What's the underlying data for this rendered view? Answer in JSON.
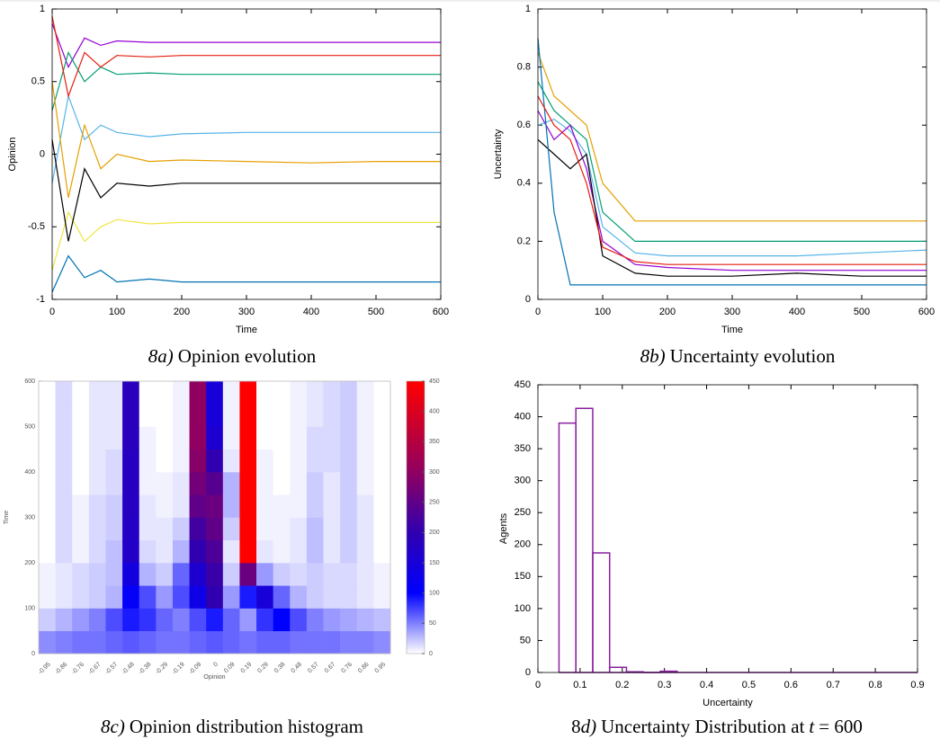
{
  "chart_data": [
    {
      "type": "line",
      "ylabel": "Opinion",
      "xlabel": "Time",
      "caption": [
        {
          "text": "8a)",
          "italic": true
        },
        {
          "text": "Opinion evolution",
          "italic": false
        }
      ],
      "xlim": [
        0,
        600
      ],
      "xticks": [
        0,
        100,
        200,
        300,
        400,
        500,
        600
      ],
      "ylim": [
        -1,
        1
      ],
      "yticks": [
        -1,
        -0.5,
        0,
        0.5,
        1
      ],
      "x": [
        0,
        25,
        50,
        75,
        100,
        150,
        200,
        300,
        400,
        500,
        600
      ],
      "series": [
        {
          "color": "#9400d3",
          "values": [
            0.9,
            0.6,
            0.8,
            0.75,
            0.78,
            0.77,
            0.77,
            0.77,
            0.77,
            0.77,
            0.77
          ]
        },
        {
          "color": "#009e73",
          "values": [
            0.3,
            0.7,
            0.5,
            0.6,
            0.55,
            0.56,
            0.55,
            0.55,
            0.55,
            0.55,
            0.55
          ]
        },
        {
          "color": "#56b4e9",
          "values": [
            -0.2,
            0.4,
            0.1,
            0.2,
            0.15,
            0.12,
            0.14,
            0.15,
            0.15,
            0.15,
            0.15
          ]
        },
        {
          "color": "#e69f00",
          "values": [
            0.5,
            -0.3,
            0.2,
            -0.1,
            0.0,
            -0.05,
            -0.04,
            -0.05,
            -0.06,
            -0.05,
            -0.05
          ]
        },
        {
          "color": "#f0e442",
          "values": [
            -0.8,
            -0.4,
            -0.6,
            -0.5,
            -0.45,
            -0.48,
            -0.47,
            -0.47,
            -0.47,
            -0.47,
            -0.47
          ]
        },
        {
          "color": "#000000",
          "values": [
            0.1,
            -0.6,
            -0.1,
            -0.3,
            -0.2,
            -0.22,
            -0.2,
            -0.2,
            -0.2,
            -0.2,
            -0.2
          ]
        },
        {
          "color": "#0072b2",
          "values": [
            -0.95,
            -0.7,
            -0.85,
            -0.8,
            -0.88,
            -0.86,
            -0.88,
            -0.88,
            -0.88,
            -0.88,
            -0.88
          ]
        },
        {
          "color": "#e51e10",
          "values": [
            0.95,
            0.4,
            0.7,
            0.6,
            0.68,
            0.67,
            0.68,
            0.68,
            0.68,
            0.68,
            0.68
          ]
        }
      ]
    },
    {
      "type": "line",
      "ylabel": "Uncertainty",
      "xlabel": "Time",
      "caption": [
        {
          "text": "8b)",
          "italic": true
        },
        {
          "text": "Uncertainty evolution",
          "italic": false
        }
      ],
      "xlim": [
        0,
        600
      ],
      "xticks": [
        0,
        100,
        200,
        300,
        400,
        500,
        600
      ],
      "ylim": [
        0,
        1
      ],
      "yticks": [
        0,
        0.2,
        0.4,
        0.6,
        0.8,
        1
      ],
      "x": [
        0,
        25,
        50,
        75,
        100,
        150,
        200,
        300,
        400,
        500,
        600
      ],
      "series": [
        {
          "color": "#e69f00",
          "values": [
            0.85,
            0.7,
            0.65,
            0.6,
            0.4,
            0.27,
            0.27,
            0.27,
            0.27,
            0.27,
            0.27
          ]
        },
        {
          "color": "#009e73",
          "values": [
            0.75,
            0.65,
            0.6,
            0.55,
            0.3,
            0.2,
            0.2,
            0.2,
            0.2,
            0.2,
            0.2
          ]
        },
        {
          "color": "#56b4e9",
          "values": [
            0.6,
            0.62,
            0.58,
            0.5,
            0.25,
            0.16,
            0.15,
            0.15,
            0.15,
            0.16,
            0.17
          ]
        },
        {
          "color": "#9400d3",
          "values": [
            0.65,
            0.55,
            0.6,
            0.45,
            0.2,
            0.12,
            0.11,
            0.1,
            0.1,
            0.1,
            0.1
          ]
        },
        {
          "color": "#000000",
          "values": [
            0.55,
            0.5,
            0.45,
            0.5,
            0.15,
            0.09,
            0.08,
            0.08,
            0.09,
            0.08,
            0.08
          ]
        },
        {
          "color": "#0072b2",
          "values": [
            0.9,
            0.3,
            0.05,
            0.05,
            0.05,
            0.05,
            0.05,
            0.05,
            0.05,
            0.05,
            0.05
          ]
        },
        {
          "color": "#e51e10",
          "values": [
            0.7,
            0.6,
            0.55,
            0.4,
            0.18,
            0.13,
            0.12,
            0.12,
            0.12,
            0.12,
            0.12
          ]
        }
      ]
    },
    {
      "type": "heatmap",
      "ylabel": "Time",
      "xlabel": "Opinion",
      "caption": [
        {
          "text": "8c)",
          "italic": true
        },
        {
          "text": "Opinion distribution histogram",
          "italic": false
        }
      ],
      "categories": [
        "-0.95",
        "-0.86",
        "-0.76",
        "-0.67",
        "-0.57",
        "-0.48",
        "-0.38",
        "-0.29",
        "-0.19",
        "-0.09",
        "0",
        "0.09",
        "0.19",
        "0.29",
        "0.38",
        "0.48",
        "0.57",
        "0.67",
        "0.76",
        "0.86",
        "0.95"
      ],
      "ylim": [
        0,
        600
      ],
      "yticks": [
        0,
        100,
        200,
        300,
        400,
        500,
        600
      ],
      "y_bins": [
        0,
        50,
        100,
        150,
        200,
        250,
        300,
        350,
        400,
        450,
        500,
        550,
        600
      ],
      "clim": [
        0,
        450
      ],
      "cticks": [
        0,
        50,
        100,
        150,
        200,
        250,
        300,
        350,
        400,
        450
      ],
      "colormap": [
        {
          "value": 0,
          "color": "#ffffff"
        },
        {
          "value": 100,
          "color": "#0000ff"
        },
        {
          "value": 200,
          "color": "#3000b0"
        },
        {
          "value": 300,
          "color": "#900060"
        },
        {
          "value": 450,
          "color": "#ff0000"
        }
      ],
      "values": [
        [
          45,
          50,
          55,
          55,
          60,
          65,
          60,
          55,
          55,
          60,
          65,
          60,
          55,
          60,
          60,
          55,
          55,
          55,
          50,
          50,
          45
        ],
        [
          20,
          30,
          40,
          50,
          70,
          90,
          80,
          60,
          50,
          70,
          90,
          60,
          40,
          80,
          100,
          70,
          50,
          40,
          35,
          30,
          25
        ],
        [
          5,
          10,
          15,
          20,
          30,
          110,
          70,
          40,
          70,
          130,
          200,
          40,
          90,
          150,
          60,
          30,
          20,
          15,
          15,
          10,
          5
        ],
        [
          5,
          10,
          15,
          20,
          25,
          140,
          30,
          20,
          60,
          160,
          210,
          20,
          260,
          40,
          20,
          15,
          20,
          15,
          15,
          10,
          5
        ],
        [
          0,
          15,
          5,
          15,
          25,
          170,
          15,
          10,
          30,
          200,
          230,
          10,
          450,
          10,
          5,
          10,
          25,
          10,
          20,
          10,
          0
        ],
        [
          0,
          15,
          5,
          15,
          20,
          175,
          10,
          10,
          20,
          220,
          250,
          20,
          450,
          5,
          5,
          10,
          25,
          10,
          20,
          10,
          0
        ],
        [
          0,
          15,
          5,
          15,
          20,
          180,
          10,
          5,
          10,
          250,
          260,
          30,
          450,
          5,
          5,
          5,
          20,
          10,
          20,
          10,
          0
        ],
        [
          0,
          15,
          0,
          10,
          15,
          180,
          5,
          5,
          10,
          270,
          240,
          30,
          450,
          5,
          0,
          5,
          20,
          10,
          20,
          5,
          0
        ],
        [
          0,
          15,
          0,
          10,
          15,
          180,
          5,
          0,
          5,
          290,
          200,
          10,
          450,
          5,
          0,
          5,
          15,
          15,
          20,
          5,
          0
        ],
        [
          0,
          15,
          0,
          10,
          10,
          185,
          5,
          0,
          5,
          300,
          160,
          5,
          450,
          0,
          0,
          5,
          15,
          15,
          20,
          5,
          0
        ],
        [
          0,
          15,
          0,
          10,
          10,
          185,
          0,
          0,
          5,
          300,
          150,
          5,
          450,
          0,
          0,
          5,
          10,
          15,
          20,
          5,
          0
        ],
        [
          0,
          15,
          0,
          10,
          10,
          185,
          0,
          0,
          5,
          300,
          150,
          5,
          450,
          0,
          0,
          5,
          10,
          15,
          20,
          5,
          0
        ]
      ]
    },
    {
      "type": "histogram",
      "ylabel": "Agents",
      "xlabel": "Uncertainty",
      "caption": [
        {
          "text": "8",
          "italic": false
        },
        {
          "text": "d)",
          "italic": true
        },
        {
          "text": "Uncertainty Distribution at",
          "italic": false
        },
        {
          "text": "t",
          "italic": true
        },
        {
          "text": "= 600",
          "italic": false
        }
      ],
      "xlim": [
        0,
        0.9
      ],
      "xticks": [
        0,
        0.1,
        0.2,
        0.3,
        0.4,
        0.5,
        0.6,
        0.7,
        0.8,
        0.9
      ],
      "ylim": [
        0,
        450
      ],
      "yticks": [
        0,
        50,
        100,
        150,
        200,
        250,
        300,
        350,
        400,
        450
      ],
      "color": "#8b1fa0",
      "bins": [
        0.05,
        0.09,
        0.13,
        0.17,
        0.21,
        0.25,
        0.29,
        0.33
      ],
      "values": [
        390,
        413,
        187,
        8,
        1,
        0,
        2
      ]
    }
  ]
}
